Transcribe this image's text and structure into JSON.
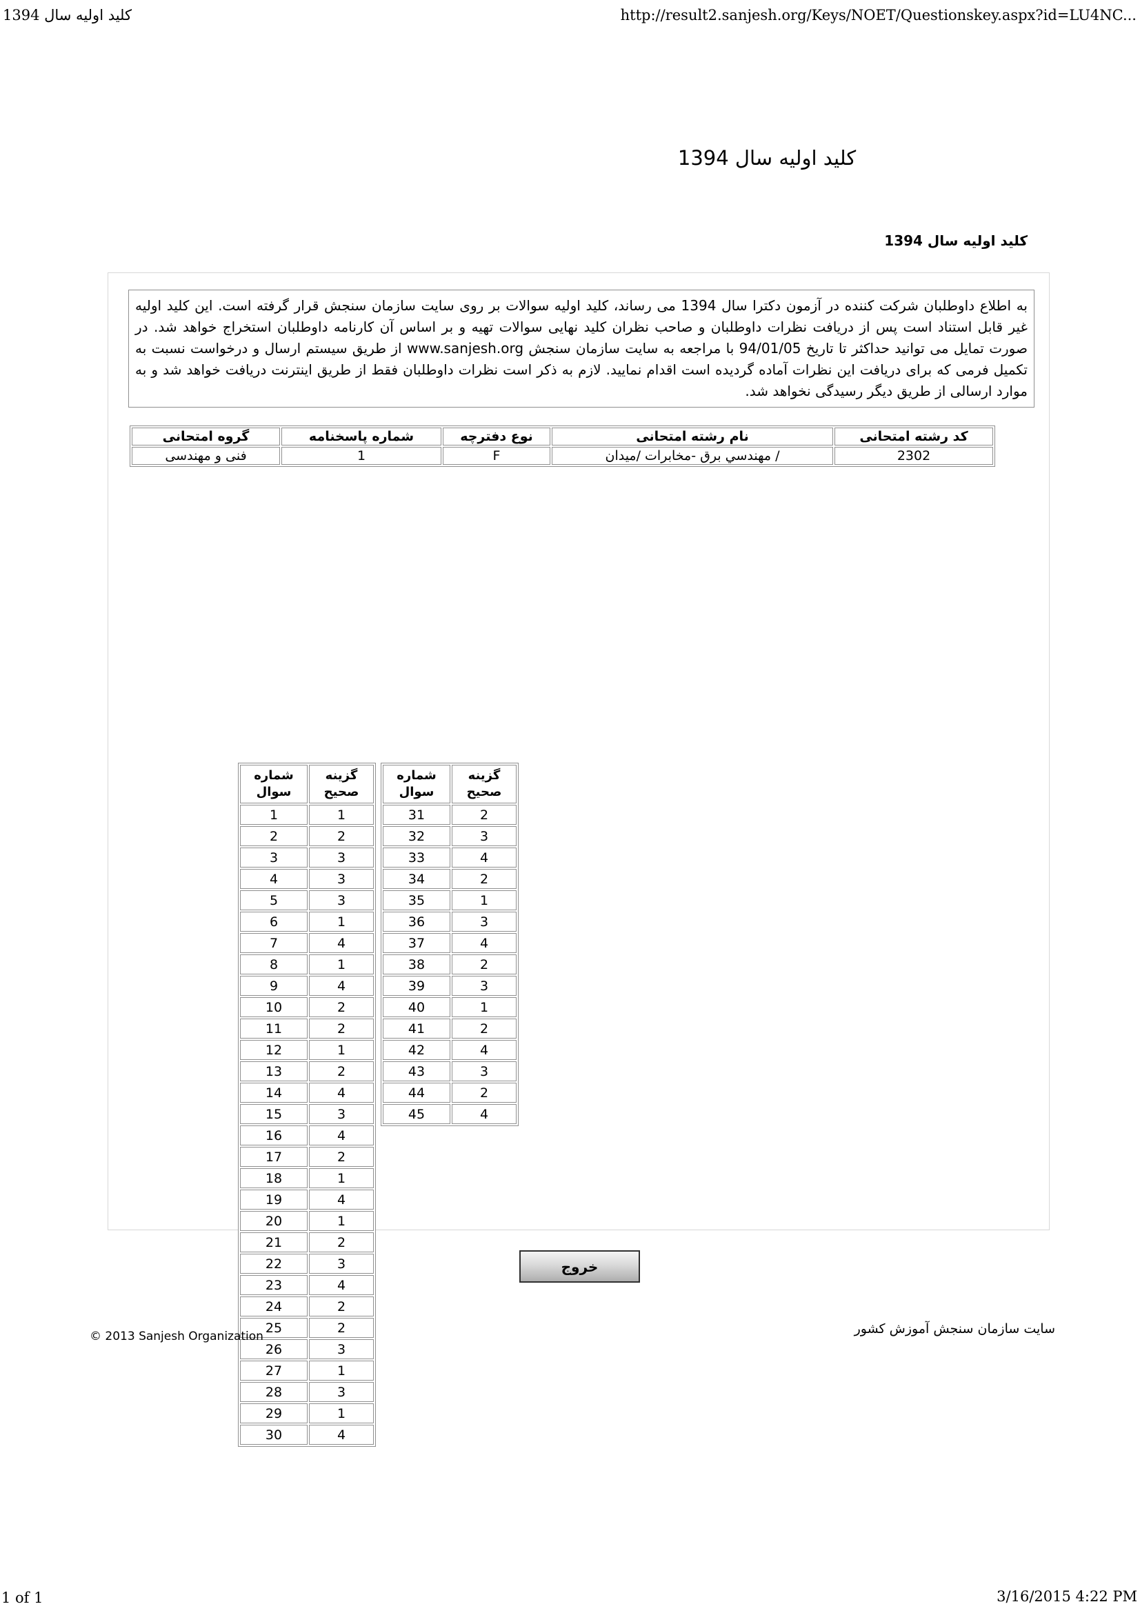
{
  "print_header": {
    "doc_title": "کلید اولیه سال 1394",
    "url": "http://result2.sanjesh.org/Keys/NOET/Questionskey.aspx?id=LU4NC..."
  },
  "titles": {
    "main": "کلید اولیه سال 1394",
    "section": "کلید اولیه سال 1394"
  },
  "notice_text": "به اطلاع داوطلبان شرکت کننده در آزمون دکترا سال 1394 می رساند، کلید اولیه سوالات بر روی سایت سازمان سنجش قرار گرفته است. این کلید اولیه غیر قابل استناد است پس از دریافت نظرات داوطلبان و صاحب نظران کلید نهایی سوالات تهیه و بر اساس آن کارنامه داوطلبان استخراج خواهد شد. در صورت تمایل می توانید حداکثر تا تاریخ 94/01/05 با مراجعه به سایت سازمان سنجش www.sanjesh.org از طریق  سیستم ارسال و درخواست نسبت به تکمیل فرمی که برای دریافت این نظرات آماده گردیده است اقدام نمایید. لازم به ذکر است نظرات داوطلبان فقط از طریق اینترنت دریافت خواهد شد و به موارد ارسالی از طریق دیگر رسیدگی نخواهد شد.",
  "info_table": {
    "headers": [
      "کد رشته امتحانی",
      "نام رشته امتحانی",
      "نوع دفترچه",
      "شماره پاسخنامه",
      "گروه امتحانی"
    ],
    "values": [
      "2302",
      "/ مهندسي برق -مخابرات /میدان",
      "F",
      "1",
      "فنی و مهندسی"
    ]
  },
  "answer_key": {
    "question_header": "شماره\nسوال",
    "answer_header": "گزینه\nصحیح",
    "table1": [
      {
        "q": "1",
        "a": "1"
      },
      {
        "q": "2",
        "a": "2"
      },
      {
        "q": "3",
        "a": "3"
      },
      {
        "q": "4",
        "a": "3"
      },
      {
        "q": "5",
        "a": "3"
      },
      {
        "q": "6",
        "a": "1"
      },
      {
        "q": "7",
        "a": "4"
      },
      {
        "q": "8",
        "a": "1"
      },
      {
        "q": "9",
        "a": "4"
      },
      {
        "q": "10",
        "a": "2"
      },
      {
        "q": "11",
        "a": "2"
      },
      {
        "q": "12",
        "a": "1"
      },
      {
        "q": "13",
        "a": "2"
      },
      {
        "q": "14",
        "a": "4"
      },
      {
        "q": "15",
        "a": "3"
      },
      {
        "q": "16",
        "a": "4"
      },
      {
        "q": "17",
        "a": "2"
      },
      {
        "q": "18",
        "a": "1"
      },
      {
        "q": "19",
        "a": "4"
      },
      {
        "q": "20",
        "a": "1"
      },
      {
        "q": "21",
        "a": "2"
      },
      {
        "q": "22",
        "a": "3"
      },
      {
        "q": "23",
        "a": "4"
      },
      {
        "q": "24",
        "a": "2"
      },
      {
        "q": "25",
        "a": "2"
      },
      {
        "q": "26",
        "a": "3"
      },
      {
        "q": "27",
        "a": "1"
      },
      {
        "q": "28",
        "a": "3"
      },
      {
        "q": "29",
        "a": "1"
      },
      {
        "q": "30",
        "a": "4"
      }
    ],
    "table2": [
      {
        "q": "31",
        "a": "2"
      },
      {
        "q": "32",
        "a": "3"
      },
      {
        "q": "33",
        "a": "4"
      },
      {
        "q": "34",
        "a": "2"
      },
      {
        "q": "35",
        "a": "1"
      },
      {
        "q": "36",
        "a": "3"
      },
      {
        "q": "37",
        "a": "4"
      },
      {
        "q": "38",
        "a": "2"
      },
      {
        "q": "39",
        "a": "3"
      },
      {
        "q": "40",
        "a": "1"
      },
      {
        "q": "41",
        "a": "2"
      },
      {
        "q": "42",
        "a": "4"
      },
      {
        "q": "43",
        "a": "3"
      },
      {
        "q": "44",
        "a": "2"
      },
      {
        "q": "45",
        "a": "4"
      }
    ]
  },
  "exit_button_label": "خروج",
  "footer": {
    "copyright": "© 2013 Sanjesh Organization",
    "site_name": "سایت سازمان سنجش آموزش کشور"
  },
  "print_footer": {
    "page_info": "1 of 1",
    "timestamp": "3/16/2015 4:22 PM"
  }
}
